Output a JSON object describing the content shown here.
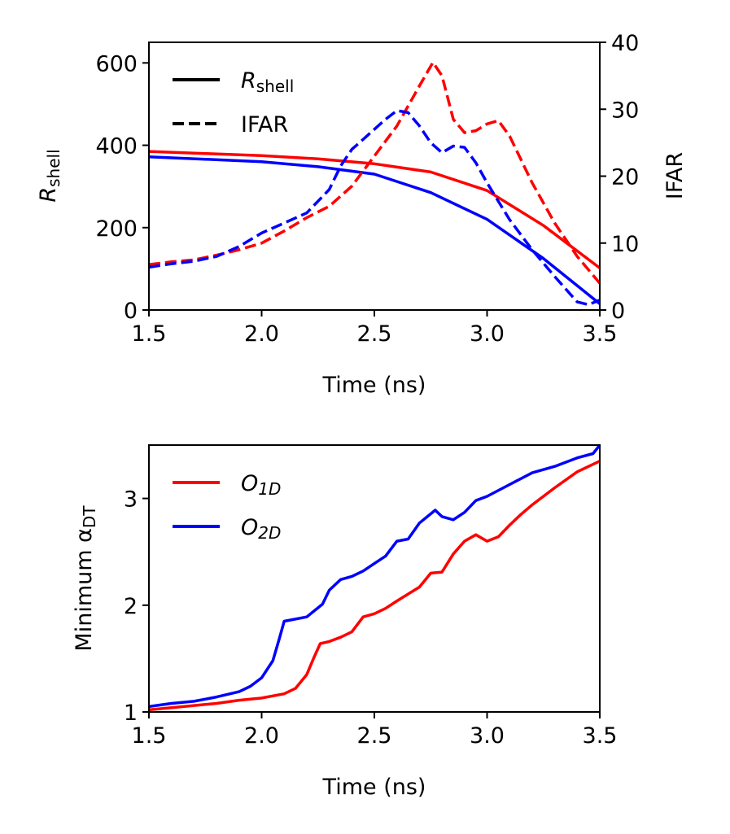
{
  "chart_data": [
    {
      "type": "line",
      "xlabel": "Time (ns)",
      "ylabel": "R",
      "ylabel_sub": "shell",
      "y2label": "IFAR",
      "xlim": [
        1.5,
        3.5
      ],
      "ylim": [
        0,
        650
      ],
      "y2lim": [
        0,
        40
      ],
      "xticks": [
        "1.5",
        "2.0",
        "2.5",
        "3.0",
        "3.5"
      ],
      "yticks": [
        "0",
        "200",
        "400",
        "600"
      ],
      "y2ticks": [
        "0",
        "10",
        "20",
        "30",
        "40"
      ],
      "legend": {
        "position": "upper-left",
        "entries": [
          {
            "label": "R",
            "label_sub": "shell",
            "style": "solid"
          },
          {
            "label": "IFAR",
            "style": "dashed"
          }
        ]
      },
      "series": [
        {
          "color": "#ff0000",
          "axis": "left",
          "style": "solid",
          "x": [
            1.5,
            1.75,
            2.0,
            2.25,
            2.5,
            2.75,
            3.0,
            3.25,
            3.5
          ],
          "y": [
            385,
            380,
            375,
            367,
            355,
            335,
            290,
            205,
            102
          ]
        },
        {
          "color": "#0000ff",
          "axis": "left",
          "style": "solid",
          "x": [
            1.5,
            1.75,
            2.0,
            2.25,
            2.5,
            2.75,
            3.0,
            3.25,
            3.5
          ],
          "y": [
            372,
            366,
            360,
            348,
            330,
            285,
            220,
            125,
            15
          ]
        },
        {
          "color": "#ff0000",
          "axis": "right",
          "style": "dashed",
          "x": [
            1.5,
            1.6,
            1.7,
            1.8,
            1.9,
            2.0,
            2.1,
            2.2,
            2.3,
            2.4,
            2.5,
            2.6,
            2.7,
            2.76,
            2.8,
            2.85,
            2.9,
            2.95,
            3.0,
            3.05,
            3.1,
            3.2,
            3.3,
            3.4,
            3.5
          ],
          "y": [
            6.8,
            7.2,
            7.5,
            8.2,
            9.0,
            10.0,
            11.8,
            13.8,
            15.5,
            18.5,
            23.0,
            27.5,
            33.5,
            37.0,
            35.0,
            28.5,
            26.5,
            26.8,
            27.8,
            28.3,
            26.0,
            19.0,
            13.0,
            8.0,
            4.0
          ]
        },
        {
          "color": "#0000ff",
          "axis": "right",
          "style": "dashed",
          "x": [
            1.5,
            1.6,
            1.7,
            1.8,
            1.9,
            2.0,
            2.1,
            2.2,
            2.3,
            2.35,
            2.4,
            2.45,
            2.5,
            2.55,
            2.6,
            2.65,
            2.7,
            2.75,
            2.8,
            2.85,
            2.9,
            2.95,
            3.0,
            3.1,
            3.2,
            3.3,
            3.4,
            3.45,
            3.5
          ],
          "y": [
            6.4,
            6.9,
            7.3,
            8.0,
            9.5,
            11.5,
            13.0,
            14.5,
            18.0,
            21.5,
            24.0,
            25.5,
            27.0,
            28.5,
            29.8,
            29.5,
            27.5,
            25.0,
            23.5,
            24.5,
            24.3,
            22.0,
            19.0,
            13.5,
            9.0,
            5.0,
            1.2,
            0.8,
            1.5
          ]
        }
      ]
    },
    {
      "type": "line",
      "xlabel": "Time (ns)",
      "ylabel": "Minimum α",
      "ylabel_sub": "DT",
      "xlim": [
        1.5,
        3.5
      ],
      "ylim": [
        1.0,
        3.5
      ],
      "xticks": [
        "1.5",
        "2.0",
        "2.5",
        "3.0",
        "3.5"
      ],
      "yticks": [
        "1",
        "2",
        "3"
      ],
      "legend": {
        "position": "upper-left"
      },
      "series": [
        {
          "name": "O",
          "name_sub": "1D",
          "color": "#ff0000",
          "x": [
            1.5,
            1.6,
            1.7,
            1.8,
            1.9,
            2.0,
            2.1,
            2.15,
            2.2,
            2.23,
            2.26,
            2.3,
            2.35,
            2.4,
            2.45,
            2.5,
            2.55,
            2.6,
            2.7,
            2.75,
            2.8,
            2.85,
            2.9,
            2.95,
            3.0,
            3.05,
            3.1,
            3.15,
            3.2,
            3.3,
            3.4,
            3.5
          ],
          "y": [
            1.02,
            1.04,
            1.06,
            1.08,
            1.11,
            1.13,
            1.17,
            1.22,
            1.35,
            1.5,
            1.64,
            1.66,
            1.7,
            1.75,
            1.89,
            1.92,
            1.97,
            2.04,
            2.17,
            2.3,
            2.31,
            2.48,
            2.6,
            2.66,
            2.6,
            2.64,
            2.75,
            2.85,
            2.94,
            3.1,
            3.25,
            3.35
          ]
        },
        {
          "name": "O",
          "name_sub": "2D",
          "color": "#0000ff",
          "x": [
            1.5,
            1.6,
            1.7,
            1.8,
            1.9,
            1.95,
            2.0,
            2.05,
            2.08,
            2.1,
            2.2,
            2.27,
            2.3,
            2.35,
            2.4,
            2.45,
            2.5,
            2.55,
            2.6,
            2.65,
            2.7,
            2.77,
            2.8,
            2.85,
            2.9,
            2.95,
            3.0,
            3.1,
            3.2,
            3.3,
            3.4,
            3.47,
            3.5
          ],
          "y": [
            1.05,
            1.08,
            1.1,
            1.14,
            1.19,
            1.24,
            1.32,
            1.48,
            1.7,
            1.85,
            1.89,
            2.01,
            2.14,
            2.24,
            2.27,
            2.32,
            2.39,
            2.46,
            2.6,
            2.62,
            2.77,
            2.89,
            2.83,
            2.8,
            2.87,
            2.98,
            3.02,
            3.13,
            3.24,
            3.3,
            3.38,
            3.42,
            3.5
          ]
        }
      ]
    }
  ]
}
